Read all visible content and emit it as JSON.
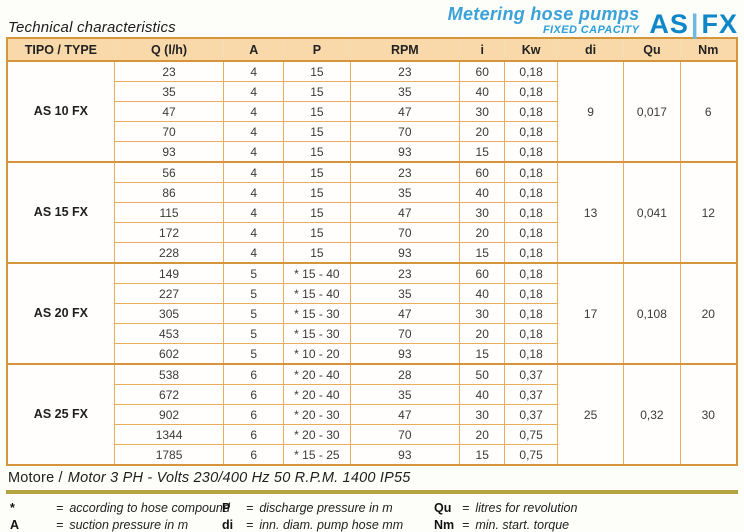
{
  "header": {
    "title": "Technical characteristics",
    "brand_line1": "Metering hose pumps",
    "brand_line2": "FIXED CAPACITY",
    "logo": {
      "left": "AS",
      "sep": "|",
      "right": "FX"
    }
  },
  "table": {
    "headers": [
      "TIPO / TYPE",
      "Q (l/h)",
      "A",
      "P",
      "RPM",
      "i",
      "Kw",
      "di",
      "Qu",
      "Nm"
    ],
    "sections": [
      {
        "type": "AS 10 FX",
        "di": "9",
        "qu": "0,017",
        "nm": "6",
        "rows": [
          {
            "q": "23",
            "a": "4",
            "p": "15",
            "rpm": "23",
            "i": "60",
            "kw": "0,18"
          },
          {
            "q": "35",
            "a": "4",
            "p": "15",
            "rpm": "35",
            "i": "40",
            "kw": "0,18"
          },
          {
            "q": "47",
            "a": "4",
            "p": "15",
            "rpm": "47",
            "i": "30",
            "kw": "0,18"
          },
          {
            "q": "70",
            "a": "4",
            "p": "15",
            "rpm": "70",
            "i": "20",
            "kw": "0,18"
          },
          {
            "q": "93",
            "a": "4",
            "p": "15",
            "rpm": "93",
            "i": "15",
            "kw": "0,18"
          }
        ]
      },
      {
        "type": "AS 15 FX",
        "di": "13",
        "qu": "0,041",
        "nm": "12",
        "rows": [
          {
            "q": "56",
            "a": "4",
            "p": "15",
            "rpm": "23",
            "i": "60",
            "kw": "0,18"
          },
          {
            "q": "86",
            "a": "4",
            "p": "15",
            "rpm": "35",
            "i": "40",
            "kw": "0,18"
          },
          {
            "q": "115",
            "a": "4",
            "p": "15",
            "rpm": "47",
            "i": "30",
            "kw": "0,18"
          },
          {
            "q": "172",
            "a": "4",
            "p": "15",
            "rpm": "70",
            "i": "20",
            "kw": "0,18"
          },
          {
            "q": "228",
            "a": "4",
            "p": "15",
            "rpm": "93",
            "i": "15",
            "kw": "0,18"
          }
        ]
      },
      {
        "type": "AS 20 FX",
        "di": "17",
        "qu": "0,108",
        "nm": "20",
        "rows": [
          {
            "q": "149",
            "a": "5",
            "p": "* 15 - 40",
            "rpm": "23",
            "i": "60",
            "kw": "0,18"
          },
          {
            "q": "227",
            "a": "5",
            "p": "* 15 - 40",
            "rpm": "35",
            "i": "40",
            "kw": "0,18"
          },
          {
            "q": "305",
            "a": "5",
            "p": "* 15 - 30",
            "rpm": "47",
            "i": "30",
            "kw": "0,18"
          },
          {
            "q": "453",
            "a": "5",
            "p": "* 15 - 30",
            "rpm": "70",
            "i": "20",
            "kw": "0,18"
          },
          {
            "q": "602",
            "a": "5",
            "p": "* 10 - 20",
            "rpm": "93",
            "i": "15",
            "kw": "0,18"
          }
        ]
      },
      {
        "type": "AS 25 FX",
        "di": "25",
        "qu": "0,32",
        "nm": "30",
        "rows": [
          {
            "q": "538",
            "a": "6",
            "p": "* 20 - 40",
            "rpm": "28",
            "i": "50",
            "kw": "0,37"
          },
          {
            "q": "672",
            "a": "6",
            "p": "* 20 - 40",
            "rpm": "35",
            "i": "40",
            "kw": "0,37"
          },
          {
            "q": "902",
            "a": "6",
            "p": "* 20 - 30",
            "rpm": "47",
            "i": "30",
            "kw": "0,37"
          },
          {
            "q": "1344",
            "a": "6",
            "p": "* 20 - 30",
            "rpm": "70",
            "i": "20",
            "kw": "0,75"
          },
          {
            "q": "1785",
            "a": "6",
            "p": "* 15 - 25",
            "rpm": "93",
            "i": "15",
            "kw": "0,75"
          }
        ]
      }
    ]
  },
  "motor_note": {
    "prefix": "Motore /",
    "rest": "Motor 3 PH - Volts 230/400 Hz 50 R.P.M. 1400 IP55"
  },
  "legend": {
    "equals": "=",
    "items": [
      {
        "symbol": "*",
        "definition": "according to hose compound"
      },
      {
        "symbol": "P",
        "definition": "discharge pressure in m"
      },
      {
        "symbol": "Qu",
        "definition": "litres for revolution"
      },
      {
        "symbol": "A",
        "definition": "suction pressure in m"
      },
      {
        "symbol": "di",
        "definition": "inn. diam. pump hose mm"
      },
      {
        "symbol": "Nm",
        "definition": "min. start. torque"
      }
    ]
  },
  "colors": {
    "header_fill": "#f9d9a9",
    "border_strong": "#d5963b",
    "border_light": "#e8ae5e",
    "brand_blue": "#3ba2d9",
    "logo_blue": "#0f86c7",
    "divider_olive": "#b3a43f"
  }
}
